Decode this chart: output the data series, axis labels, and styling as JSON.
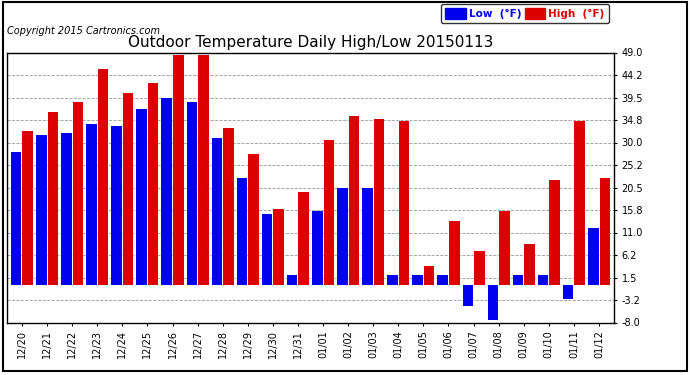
{
  "title": "Outdoor Temperature Daily High/Low 20150113",
  "copyright": "Copyright 2015 Cartronics.com",
  "legend_low": "Low  (°F)",
  "legend_high": "High  (°F)",
  "low_color": "#0000ee",
  "high_color": "#dd0000",
  "background_color": "#ffffff",
  "ylim": [
    -8.0,
    49.0
  ],
  "yticks": [
    -8.0,
    -3.2,
    1.5,
    6.2,
    11.0,
    15.8,
    20.5,
    25.2,
    30.0,
    34.8,
    39.5,
    44.2,
    49.0
  ],
  "dates": [
    "12/20",
    "12/21",
    "12/22",
    "12/23",
    "12/24",
    "12/25",
    "12/26",
    "12/27",
    "12/28",
    "12/29",
    "12/30",
    "12/31",
    "01/01",
    "01/02",
    "01/03",
    "01/04",
    "01/05",
    "01/06",
    "01/07",
    "01/08",
    "01/09",
    "01/10",
    "01/11",
    "01/12"
  ],
  "highs": [
    32.5,
    36.5,
    38.5,
    45.5,
    40.5,
    42.5,
    48.5,
    48.5,
    33.0,
    27.5,
    16.0,
    19.5,
    30.5,
    35.5,
    35.0,
    34.5,
    4.0,
    13.5,
    7.0,
    15.5,
    8.5,
    22.0,
    34.5,
    22.5
  ],
  "lows": [
    28.0,
    31.5,
    32.0,
    34.0,
    33.5,
    37.0,
    39.5,
    38.5,
    31.0,
    22.5,
    15.0,
    2.0,
    15.5,
    20.5,
    20.5,
    2.0,
    2.0,
    2.0,
    -4.5,
    -7.5,
    2.0,
    2.0,
    -3.0,
    12.0
  ],
  "border_color": "#000000",
  "grid_color": "#999999",
  "title_fontsize": 11,
  "tick_fontsize": 7,
  "copyright_fontsize": 7
}
